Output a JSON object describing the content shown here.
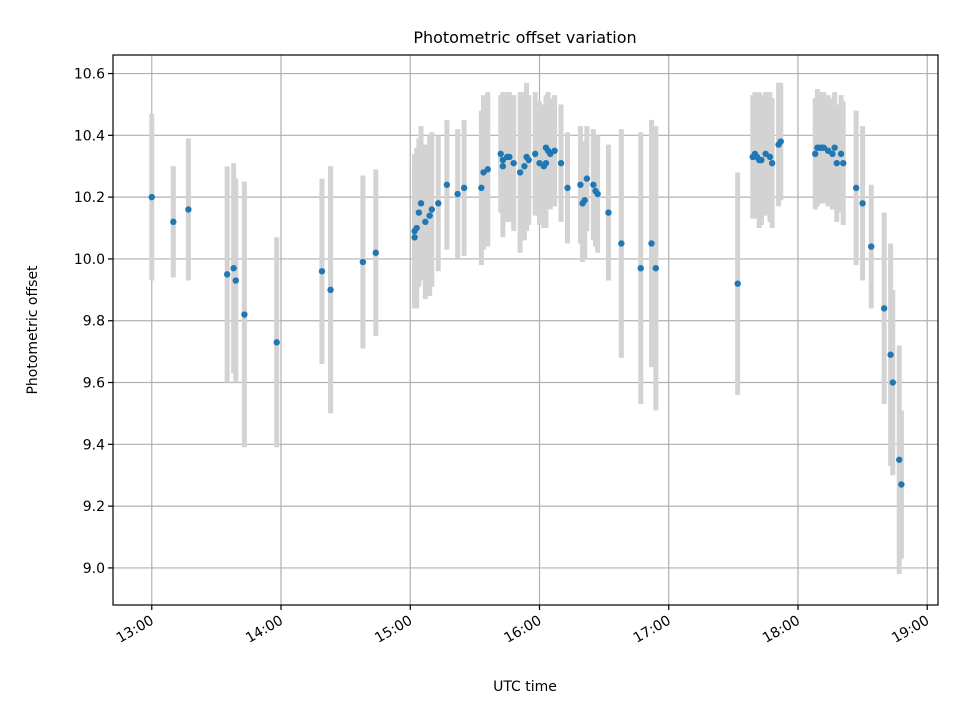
{
  "chart_data": {
    "type": "scatter",
    "title": "Photometric offset variation",
    "xlabel": "UTC time",
    "ylabel": "Photometric offset",
    "x_unit": "UTC hours",
    "xlim": [
      "12:42",
      "19:05"
    ],
    "ylim": [
      8.88,
      10.66
    ],
    "x_ticks": [
      "13:00",
      "14:00",
      "15:00",
      "16:00",
      "17:00",
      "18:00",
      "19:00"
    ],
    "y_ticks": [
      "9.0",
      "9.2",
      "9.4",
      "9.6",
      "9.8",
      "10.0",
      "10.2",
      "10.4",
      "10.6"
    ],
    "grid": true,
    "legend": "none",
    "colors": {
      "points": "#1f77b4",
      "error_bars": "#d3d3d3",
      "grid": "#b0b0b0"
    },
    "series": [
      {
        "x": [
          "13:00",
          "13:10",
          "13:17",
          "13:35",
          "13:38",
          "13:39",
          "13:43",
          "13:58",
          "14:19",
          "14:23",
          "14:38",
          "14:44",
          "15:02",
          "15:02",
          "15:03",
          "15:04",
          "15:05",
          "15:07",
          "15:09",
          "15:10",
          "15:13",
          "15:17",
          "15:22",
          "15:25",
          "15:33",
          "15:34",
          "15:36",
          "15:42",
          "15:43",
          "15:43",
          "15:45",
          "15:46",
          "15:48",
          "15:51",
          "15:53",
          "15:54",
          "15:55",
          "15:58",
          "16:00",
          "16:02",
          "16:03",
          "16:03",
          "16:04",
          "16:05",
          "16:07",
          "16:10",
          "16:13",
          "16:19",
          "16:20",
          "16:21",
          "16:22",
          "16:25",
          "16:26",
          "16:27",
          "16:32",
          "16:38",
          "16:47",
          "16:52",
          "16:54",
          "17:32",
          "17:39",
          "17:40",
          "17:41",
          "17:42",
          "17:43",
          "17:45",
          "17:47",
          "17:48",
          "17:51",
          "17:52",
          "18:08",
          "18:09",
          "18:10",
          "18:11",
          "18:12",
          "18:14",
          "18:16",
          "18:17",
          "18:18",
          "18:20",
          "18:21",
          "18:27",
          "18:30",
          "18:34",
          "18:40",
          "18:43",
          "18:44",
          "18:47",
          "18:48"
        ],
        "y": [
          10.2,
          10.12,
          10.16,
          9.95,
          9.97,
          9.93,
          9.82,
          9.73,
          9.96,
          9.9,
          9.99,
          10.02,
          10.07,
          10.09,
          10.1,
          10.15,
          10.18,
          10.12,
          10.14,
          10.16,
          10.18,
          10.24,
          10.21,
          10.23,
          10.23,
          10.28,
          10.29,
          10.34,
          10.3,
          10.32,
          10.33,
          10.33,
          10.31,
          10.28,
          10.3,
          10.33,
          10.32,
          10.34,
          10.31,
          10.3,
          10.31,
          10.36,
          10.35,
          10.34,
          10.35,
          10.31,
          10.23,
          10.24,
          10.18,
          10.19,
          10.26,
          10.24,
          10.22,
          10.21,
          10.15,
          10.05,
          9.97,
          10.05,
          9.97,
          9.92,
          10.33,
          10.34,
          10.33,
          10.32,
          10.32,
          10.34,
          10.33,
          10.31,
          10.37,
          10.38,
          10.34,
          10.36,
          10.36,
          10.36,
          10.36,
          10.35,
          10.34,
          10.36,
          10.31,
          10.34,
          10.31,
          10.23,
          10.18,
          10.04,
          9.84,
          9.69,
          9.6,
          9.35,
          9.27
        ],
        "yerr": [
          0.27,
          0.18,
          0.23,
          0.35,
          0.34,
          0.33,
          0.43,
          0.34,
          0.3,
          0.4,
          0.28,
          0.27,
          0.23,
          0.25,
          0.26,
          0.24,
          0.25,
          0.25,
          0.26,
          0.25,
          0.22,
          0.21,
          0.21,
          0.22,
          0.25,
          0.25,
          0.25,
          0.19,
          0.23,
          0.22,
          0.21,
          0.21,
          0.22,
          0.26,
          0.24,
          0.24,
          0.21,
          0.2,
          0.2,
          0.2,
          0.21,
          0.17,
          0.19,
          0.18,
          0.18,
          0.19,
          0.18,
          0.19,
          0.19,
          0.19,
          0.17,
          0.18,
          0.18,
          0.19,
          0.22,
          0.37,
          0.44,
          0.4,
          0.46,
          0.36,
          0.2,
          0.2,
          0.2,
          0.22,
          0.21,
          0.2,
          0.21,
          0.21,
          0.2,
          0.19,
          0.18,
          0.19,
          0.18,
          0.18,
          0.18,
          0.18,
          0.18,
          0.18,
          0.19,
          0.19,
          0.2,
          0.25,
          0.25,
          0.2,
          0.31,
          0.36,
          0.3,
          0.37,
          0.24
        ]
      }
    ]
  }
}
